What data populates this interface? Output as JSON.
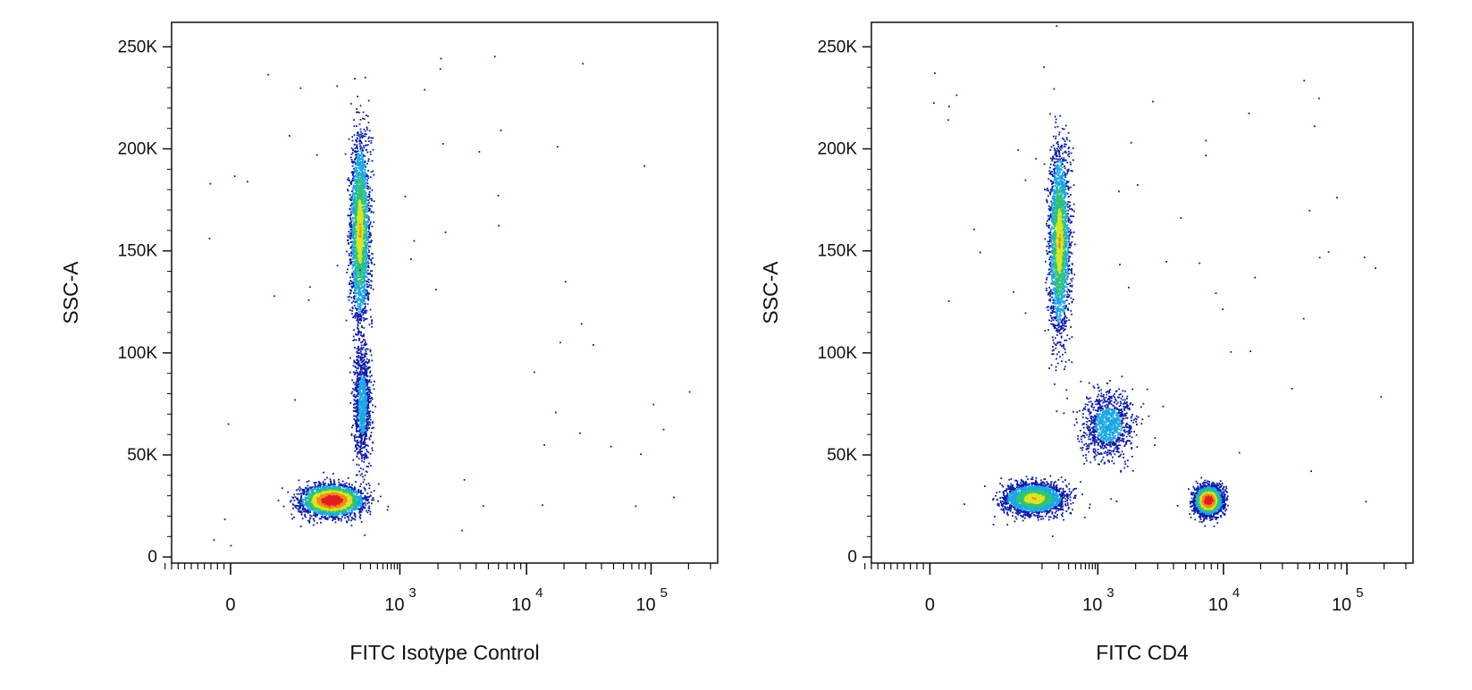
{
  "chart_data": [
    {
      "type": "scatter",
      "subtype": "flow-cytometry-density-dot-plot",
      "xlabel": "FITC Isotype Control",
      "ylabel": "SSC-A",
      "x_scale": "biexponential",
      "x_tick_labels": [
        "0",
        "10",
        "10",
        "10"
      ],
      "x_tick_exponents": [
        "",
        "3",
        "4",
        "5"
      ],
      "x_tick_values": [
        0,
        1000,
        10000,
        100000
      ],
      "y_tick_labels": [
        "0",
        "50K",
        "100K",
        "150K",
        "200K",
        "250K"
      ],
      "y_tick_values": [
        0,
        50000,
        100000,
        150000,
        200000,
        250000
      ],
      "ylim": [
        -3000,
        262000
      ],
      "grid": false,
      "color_scale": [
        "#0a1aa8",
        "#1aa7e6",
        "#2ec27a",
        "#d9e61e",
        "#f08a1c",
        "#e0201e"
      ],
      "populations": [
        {
          "x_center": 60,
          "y_center": 28000,
          "x_spread": 120,
          "y_spread": 6500,
          "density": "high"
        },
        {
          "x_center": 190,
          "y_center": 160000,
          "x_spread": 80,
          "y_spread": 40000,
          "density": "medium"
        },
        {
          "x_center": 210,
          "y_center": 75000,
          "x_spread": 75,
          "y_spread": 25000,
          "density": "low"
        }
      ]
    },
    {
      "type": "scatter",
      "subtype": "flow-cytometry-density-dot-plot",
      "xlabel": "FITC CD4",
      "ylabel": "SSC-A",
      "x_scale": "biexponential",
      "x_tick_labels": [
        "0",
        "10",
        "10",
        "10"
      ],
      "x_tick_exponents": [
        "",
        "3",
        "4",
        "5"
      ],
      "x_tick_values": [
        0,
        1000,
        10000,
        100000
      ],
      "y_tick_labels": [
        "0",
        "50K",
        "100K",
        "150K",
        "200K",
        "250K"
      ],
      "y_tick_values": [
        0,
        50000,
        100000,
        150000,
        200000,
        250000
      ],
      "ylim": [
        -3000,
        262000
      ],
      "grid": false,
      "color_scale": [
        "#0a1aa8",
        "#1aa7e6",
        "#2ec27a",
        "#d9e61e",
        "#f08a1c",
        "#e0201e"
      ],
      "populations": [
        {
          "x_center": 70,
          "y_center": 29000,
          "x_spread": 140,
          "y_spread": 6500,
          "density": "medium"
        },
        {
          "x_center": 200,
          "y_center": 155000,
          "x_spread": 90,
          "y_spread": 40000,
          "density": "medium"
        },
        {
          "x_center": 1200,
          "y_center": 65000,
          "x_spread": 600,
          "y_spread": 14000,
          "density": "low"
        },
        {
          "x_center": 7500,
          "y_center": 28000,
          "x_spread": 1800,
          "y_spread": 6000,
          "density": "high"
        }
      ]
    }
  ]
}
